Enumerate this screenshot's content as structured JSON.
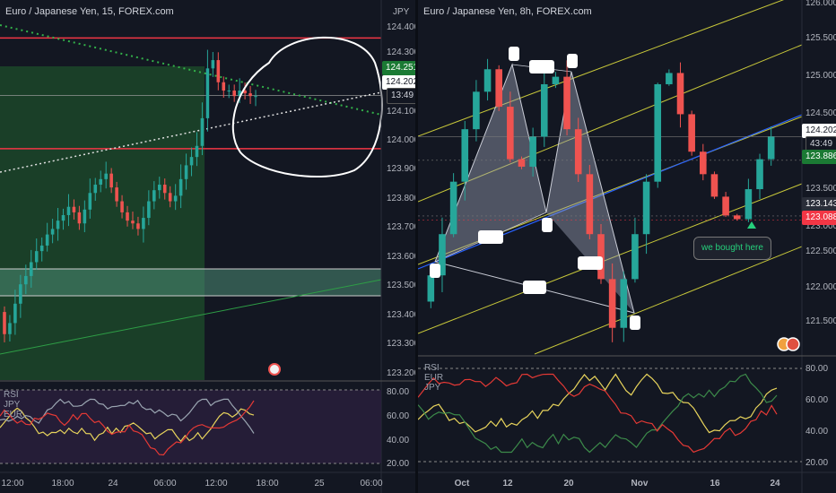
{
  "left": {
    "title": "Euro / Japanese Yen, 15, FOREX.com",
    "currency": "JPY",
    "price_axis": [
      "124.400",
      "124.300",
      "124.100",
      "124.000",
      "123.900",
      "123.800",
      "123.700",
      "123.600",
      "123.500",
      "123.400",
      "123.300",
      "123.200"
    ],
    "time_axis": [
      "12:00",
      "18:00",
      "24",
      "06:00",
      "12:00",
      "18:00",
      "25",
      "06:00"
    ],
    "tags": {
      "green": "124.251",
      "white": "124.202",
      "timer": "13:49"
    },
    "rsi_axis": [
      "80.00",
      "60.00",
      "40.00",
      "20.00"
    ],
    "indicator_labels": [
      "RSI",
      "JPY",
      "EUR"
    ]
  },
  "right": {
    "title": "Euro / Japanese Yen, 8h, FOREX.com",
    "price_axis": [
      "125.500",
      "125.000",
      "124.500",
      "124.000",
      "123.500",
      "123.000",
      "122.500",
      "122.000",
      "121.500"
    ],
    "top_cut": "126.000",
    "time_axis": [
      "Oct",
      "12",
      "20",
      "Nov",
      "16",
      "24"
    ],
    "tags": {
      "white": "124.202",
      "timer": "43:49",
      "green": "123.886",
      "dark": "123.143",
      "red": "123.088"
    },
    "annotation": "we bought here",
    "rsi_axis": [
      "80.00",
      "60.00",
      "40.00",
      "20.00"
    ],
    "indicator_labels": [
      "RSI",
      "EUR",
      "JPY"
    ]
  },
  "colors": {
    "bg": "#131722",
    "up": "#26a69a",
    "down": "#ef5350",
    "red_line": "#f23645",
    "green_tag": "#1b7a34",
    "channel": "#c8c83a",
    "blue_line": "#2962ff"
  },
  "chart_data": [
    {
      "type": "candlestick",
      "title": "Euro / Japanese Yen, 15, FOREX.com",
      "ylim": [
        123.2,
        124.45
      ],
      "x_ticks": [
        "12:00",
        "18:00",
        "24",
        "06:00",
        "12:00",
        "18:00",
        "25",
        "06:00"
      ],
      "close": [
        123.34,
        123.38,
        123.45,
        123.52,
        123.55,
        123.6,
        123.64,
        123.66,
        123.7,
        123.72,
        123.75,
        123.77,
        123.8,
        123.78,
        123.74,
        123.79,
        123.85,
        123.88,
        123.9,
        123.92,
        123.87,
        123.82,
        123.78,
        123.75,
        123.74,
        123.72,
        123.76,
        123.82,
        123.86,
        123.88,
        123.85,
        123.82,
        123.84,
        123.9,
        123.95,
        123.98,
        124.02,
        124.12,
        124.3,
        124.33,
        124.25,
        124.22,
        124.22,
        124.2,
        124.22,
        124.21,
        124.2,
        124.2
      ],
      "horizontal_lines": [
        124.41,
        124.01
      ],
      "tags": [
        "124.251",
        "124.202"
      ]
    },
    {
      "type": "candlestick",
      "title": "Euro / Japanese Yen, 8h, FOREX.com",
      "ylim": [
        121.3,
        126.0
      ],
      "x_ticks": [
        "Oct",
        "12",
        "20",
        "Nov",
        "16",
        "24"
      ],
      "close": [
        122.35,
        122.9,
        123.6,
        124.3,
        124.8,
        125.1,
        124.6,
        123.9,
        123.8,
        124.2,
        124.9,
        125.0,
        124.3,
        123.7,
        122.9,
        122.3,
        121.65,
        122.3,
        122.9,
        123.6,
        124.9,
        125.05,
        124.5,
        124.0,
        123.7,
        123.4,
        123.15,
        123.1,
        123.5,
        123.9,
        124.2
      ],
      "horizontal_lines": [
        124.202,
        123.886,
        123.143,
        123.088
      ],
      "tags": [
        "124.202",
        "123.886",
        "123.143",
        "123.088"
      ]
    }
  ]
}
